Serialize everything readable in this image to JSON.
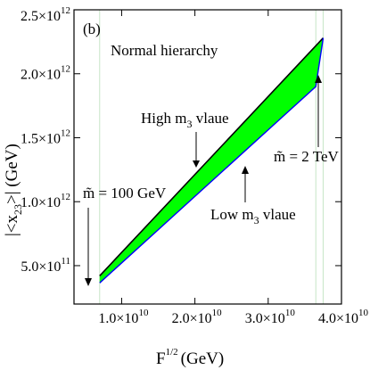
{
  "chart_data": {
    "type": "area",
    "panel_label": "(b)",
    "title": "Normal hierarchy",
    "xlabel": {
      "base": "F",
      "sup": "1/2",
      "unit": "(GeV)"
    },
    "ylabel": {
      "pre": "|<x",
      "sub": "23",
      "post": ">| (GeV)"
    },
    "xlim": [
      3500000000.0,
      40000000000.0
    ],
    "ylim": [
      200000000000.0,
      2500000000000.0
    ],
    "x_ticks": [
      {
        "value": 10000000000.0,
        "mant": "1.0×10",
        "exp": "10"
      },
      {
        "value": 20000000000.0,
        "mant": "2.0×10",
        "exp": "10"
      },
      {
        "value": 30000000000.0,
        "mant": "3.0×10",
        "exp": "10"
      },
      {
        "value": 40000000000.0,
        "mant": "4.0×10",
        "exp": "10"
      }
    ],
    "y_ticks": [
      {
        "value": 500000000000.0,
        "mant": "5.0×10",
        "exp": "11"
      },
      {
        "value": 1000000000000.0,
        "mant": "1.0×10",
        "exp": "12"
      },
      {
        "value": 1500000000000.0,
        "mant": "1.5×10",
        "exp": "12"
      },
      {
        "value": 2000000000000.0,
        "mant": "2.0×10",
        "exp": "12"
      },
      {
        "value": 2500000000000.0,
        "mant": "2.5×10",
        "exp": "12"
      }
    ],
    "upper_curve": {
      "x": [
        7000000000.0,
        37500000000.0
      ],
      "y": [
        420000000000.0,
        2280000000000.0
      ]
    },
    "lower_curve": {
      "x": [
        7000000000.0,
        36500000000.0,
        37500000000.0
      ],
      "y": [
        365000000000.0,
        1900000000000.0,
        2280000000000.0
      ]
    },
    "vertical_markers_x": [
      7000000000.0,
      36500000000.0,
      37500000000.0
    ],
    "annotations": {
      "high": {
        "pre": "High m",
        "sub": "3",
        "post": " vlaue"
      },
      "low": {
        "pre": "Low m",
        "sub": "3",
        "post": " vlaue"
      },
      "m100": "m̃ = 100 GeV",
      "m2": "m̃ = 2 TeV"
    },
    "colors": {
      "fill": "#00ff00",
      "upper_line": "#000000",
      "lower_line": "#0000ff",
      "marker_line": "#c8e6c8"
    }
  }
}
